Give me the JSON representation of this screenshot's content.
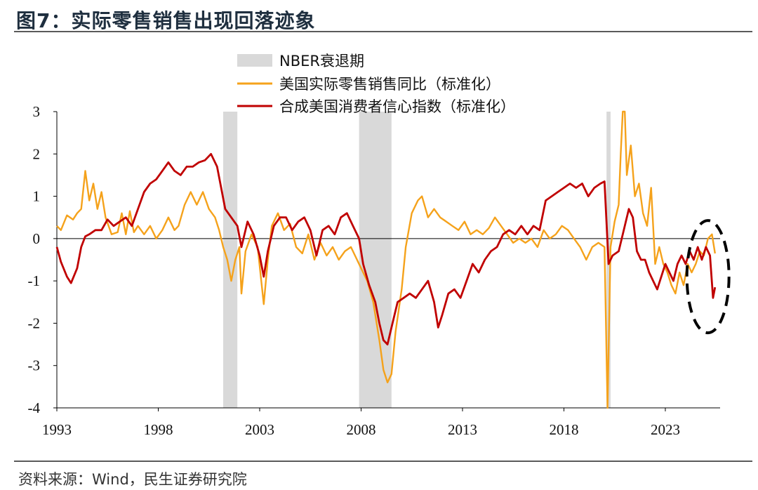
{
  "figure": {
    "title": "图7：实际零售销售出现回落迹象",
    "source": "资料来源：Wind，民生证券研究院"
  },
  "colors": {
    "retail": "#F5A21B",
    "confidence": "#C00000",
    "nber": "#D9D9D9",
    "axis": "#000000"
  },
  "chart_data": {
    "type": "line",
    "x_axis": {
      "ticks": [
        "1993",
        "1998",
        "2003",
        "2008",
        "2013",
        "2018",
        "2023"
      ],
      "range": [
        1993,
        2025.7
      ]
    },
    "y_axis": {
      "ticks": [
        "3",
        "2",
        "1",
        "0",
        "-1",
        "-2",
        "-3",
        "-4"
      ],
      "range": [
        -4,
        3
      ]
    },
    "legend": {
      "position": "top-center",
      "entries": [
        "NBER衰退期",
        "美国实际零售销售同比（标准化）",
        "合成美国消费者信心指数（标准化）"
      ]
    },
    "recessions": [
      {
        "label": "NBER衰退期",
        "start": 2001.2,
        "end": 2001.9
      },
      {
        "label": "NBER衰退期",
        "start": 2007.9,
        "end": 2009.5
      },
      {
        "label": "NBER衰退期",
        "start": 2020.1,
        "end": 2020.3
      }
    ],
    "series": [
      {
        "name": "美国实际零售销售同比（标准化）",
        "color_key": "retail",
        "points": [
          [
            1993.0,
            0.3
          ],
          [
            1993.2,
            0.2
          ],
          [
            1993.5,
            0.55
          ],
          [
            1993.8,
            0.45
          ],
          [
            1994.0,
            0.6
          ],
          [
            1994.2,
            0.7
          ],
          [
            1994.4,
            1.6
          ],
          [
            1994.6,
            0.9
          ],
          [
            1994.8,
            1.3
          ],
          [
            1995.0,
            0.7
          ],
          [
            1995.2,
            1.1
          ],
          [
            1995.4,
            0.5
          ],
          [
            1995.7,
            0.1
          ],
          [
            1996.0,
            0.15
          ],
          [
            1996.2,
            0.6
          ],
          [
            1996.4,
            0.1
          ],
          [
            1996.6,
            0.65
          ],
          [
            1996.8,
            0.15
          ],
          [
            1997.0,
            0.3
          ],
          [
            1997.3,
            0.1
          ],
          [
            1997.6,
            0.3
          ],
          [
            1997.9,
            0.0
          ],
          [
            1998.2,
            0.2
          ],
          [
            1998.5,
            0.5
          ],
          [
            1998.8,
            0.2
          ],
          [
            1999.0,
            0.3
          ],
          [
            1999.3,
            0.8
          ],
          [
            1999.6,
            1.1
          ],
          [
            1999.9,
            0.8
          ],
          [
            2000.2,
            1.1
          ],
          [
            2000.5,
            0.7
          ],
          [
            2000.8,
            0.5
          ],
          [
            2001.0,
            0.2
          ],
          [
            2001.2,
            -0.2
          ],
          [
            2001.4,
            -0.5
          ],
          [
            2001.6,
            -1.0
          ],
          [
            2001.8,
            -0.5
          ],
          [
            2002.0,
            -0.2
          ],
          [
            2002.1,
            -1.3
          ],
          [
            2002.3,
            -0.3
          ],
          [
            2002.6,
            0.1
          ],
          [
            2002.9,
            -0.2
          ],
          [
            2003.2,
            -1.55
          ],
          [
            2003.4,
            -0.5
          ],
          [
            2003.6,
            0.3
          ],
          [
            2003.9,
            0.6
          ],
          [
            2004.2,
            0.2
          ],
          [
            2004.5,
            0.35
          ],
          [
            2004.8,
            -0.2
          ],
          [
            2005.1,
            -0.35
          ],
          [
            2005.4,
            0.1
          ],
          [
            2005.7,
            -0.5
          ],
          [
            2006.0,
            -0.1
          ],
          [
            2006.3,
            -0.4
          ],
          [
            2006.6,
            -0.2
          ],
          [
            2006.9,
            -0.5
          ],
          [
            2007.2,
            -0.3
          ],
          [
            2007.5,
            -0.2
          ],
          [
            2007.8,
            -0.5
          ],
          [
            2008.0,
            -0.7
          ],
          [
            2008.3,
            -1.0
          ],
          [
            2008.6,
            -1.5
          ],
          [
            2008.9,
            -2.4
          ],
          [
            2009.1,
            -3.1
          ],
          [
            2009.3,
            -3.4
          ],
          [
            2009.5,
            -3.2
          ],
          [
            2009.7,
            -2.2
          ],
          [
            2010.0,
            -1.2
          ],
          [
            2010.2,
            -0.2
          ],
          [
            2010.5,
            0.6
          ],
          [
            2010.8,
            0.9
          ],
          [
            2011.0,
            1.0
          ],
          [
            2011.3,
            0.5
          ],
          [
            2011.6,
            0.7
          ],
          [
            2011.9,
            0.5
          ],
          [
            2012.2,
            0.4
          ],
          [
            2012.5,
            0.3
          ],
          [
            2012.8,
            0.2
          ],
          [
            2013.1,
            0.4
          ],
          [
            2013.4,
            0.1
          ],
          [
            2013.7,
            0.2
          ],
          [
            2014.0,
            0.1
          ],
          [
            2014.3,
            0.25
          ],
          [
            2014.6,
            0.5
          ],
          [
            2014.9,
            0.3
          ],
          [
            2015.2,
            0.1
          ],
          [
            2015.5,
            -0.1
          ],
          [
            2015.8,
            0.0
          ],
          [
            2016.1,
            -0.1
          ],
          [
            2016.4,
            0.0
          ],
          [
            2016.7,
            -0.2
          ],
          [
            2017.0,
            0.2
          ],
          [
            2017.3,
            0.0
          ],
          [
            2017.6,
            0.1
          ],
          [
            2017.9,
            0.3
          ],
          [
            2018.2,
            0.2
          ],
          [
            2018.5,
            0.0
          ],
          [
            2018.8,
            -0.2
          ],
          [
            2019.1,
            -0.5
          ],
          [
            2019.4,
            -0.2
          ],
          [
            2019.7,
            -0.1
          ],
          [
            2020.0,
            -0.2
          ],
          [
            2020.15,
            -4.0
          ],
          [
            2020.3,
            -0.2
          ],
          [
            2020.5,
            0.4
          ],
          [
            2020.7,
            0.8
          ],
          [
            2020.8,
            2.0
          ],
          [
            2020.9,
            3.0
          ],
          [
            2021.0,
            3.0
          ],
          [
            2021.1,
            1.5
          ],
          [
            2021.3,
            2.2
          ],
          [
            2021.5,
            1.0
          ],
          [
            2021.7,
            1.3
          ],
          [
            2021.9,
            0.6
          ],
          [
            2022.1,
            0.3
          ],
          [
            2022.3,
            1.2
          ],
          [
            2022.5,
            -0.6
          ],
          [
            2022.7,
            -0.2
          ],
          [
            2022.9,
            -0.6
          ],
          [
            2023.1,
            -0.8
          ],
          [
            2023.3,
            -1.1
          ],
          [
            2023.5,
            -1.3
          ],
          [
            2023.7,
            -0.8
          ],
          [
            2023.9,
            -1.1
          ],
          [
            2024.1,
            -0.6
          ],
          [
            2024.3,
            -0.8
          ],
          [
            2024.5,
            -0.6
          ],
          [
            2024.7,
            -0.3
          ],
          [
            2024.9,
            -0.4
          ],
          [
            2025.1,
            0.0
          ],
          [
            2025.3,
            0.1
          ],
          [
            2025.45,
            -0.35
          ]
        ]
      },
      {
        "name": "合成美国消费者信心指数（标准化）",
        "color_key": "confidence",
        "points": [
          [
            1993.0,
            -0.2
          ],
          [
            1993.2,
            -0.55
          ],
          [
            1993.5,
            -0.9
          ],
          [
            1993.7,
            -1.05
          ],
          [
            1994.0,
            -0.7
          ],
          [
            1994.2,
            -0.2
          ],
          [
            1994.4,
            0.05
          ],
          [
            1994.6,
            0.1
          ],
          [
            1994.9,
            0.2
          ],
          [
            1995.2,
            0.2
          ],
          [
            1995.5,
            0.45
          ],
          [
            1995.8,
            0.3
          ],
          [
            1996.1,
            0.4
          ],
          [
            1996.4,
            0.5
          ],
          [
            1996.7,
            0.3
          ],
          [
            1997.0,
            0.7
          ],
          [
            1997.3,
            1.1
          ],
          [
            1997.6,
            1.3
          ],
          [
            1997.9,
            1.4
          ],
          [
            1998.2,
            1.6
          ],
          [
            1998.5,
            1.8
          ],
          [
            1998.8,
            1.6
          ],
          [
            1999.1,
            1.5
          ],
          [
            1999.4,
            1.7
          ],
          [
            1999.7,
            1.7
          ],
          [
            2000.0,
            1.8
          ],
          [
            2000.3,
            1.85
          ],
          [
            2000.6,
            2.0
          ],
          [
            2000.9,
            1.7
          ],
          [
            2001.1,
            1.2
          ],
          [
            2001.3,
            0.7
          ],
          [
            2001.6,
            0.5
          ],
          [
            2001.9,
            0.3
          ],
          [
            2002.1,
            -0.2
          ],
          [
            2002.4,
            0.4
          ],
          [
            2002.7,
            0.1
          ],
          [
            2003.0,
            -0.4
          ],
          [
            2003.2,
            -0.9
          ],
          [
            2003.4,
            -0.3
          ],
          [
            2003.7,
            0.3
          ],
          [
            2004.0,
            0.5
          ],
          [
            2004.3,
            0.5
          ],
          [
            2004.6,
            0.2
          ],
          [
            2004.9,
            0.4
          ],
          [
            2005.2,
            0.5
          ],
          [
            2005.5,
            0.2
          ],
          [
            2005.8,
            -0.4
          ],
          [
            2006.1,
            0.2
          ],
          [
            2006.4,
            0.3
          ],
          [
            2006.7,
            0.1
          ],
          [
            2007.0,
            0.5
          ],
          [
            2007.3,
            0.6
          ],
          [
            2007.6,
            0.3
          ],
          [
            2007.9,
            0.0
          ],
          [
            2008.1,
            -0.6
          ],
          [
            2008.4,
            -1.1
          ],
          [
            2008.7,
            -1.5
          ],
          [
            2008.9,
            -2.0
          ],
          [
            2009.1,
            -2.4
          ],
          [
            2009.3,
            -2.5
          ],
          [
            2009.5,
            -2.1
          ],
          [
            2009.8,
            -1.5
          ],
          [
            2010.1,
            -1.4
          ],
          [
            2010.4,
            -1.3
          ],
          [
            2010.7,
            -1.4
          ],
          [
            2011.0,
            -1.2
          ],
          [
            2011.3,
            -1.0
          ],
          [
            2011.6,
            -1.5
          ],
          [
            2011.8,
            -2.1
          ],
          [
            2012.0,
            -1.8
          ],
          [
            2012.3,
            -1.3
          ],
          [
            2012.6,
            -1.2
          ],
          [
            2012.9,
            -1.4
          ],
          [
            2013.2,
            -1.0
          ],
          [
            2013.5,
            -0.6
          ],
          [
            2013.8,
            -0.8
          ],
          [
            2014.1,
            -0.5
          ],
          [
            2014.4,
            -0.3
          ],
          [
            2014.7,
            -0.2
          ],
          [
            2015.0,
            0.1
          ],
          [
            2015.3,
            0.2
          ],
          [
            2015.6,
            0.1
          ],
          [
            2015.9,
            0.3
          ],
          [
            2016.2,
            0.1
          ],
          [
            2016.5,
            0.3
          ],
          [
            2016.8,
            0.2
          ],
          [
            2017.1,
            0.9
          ],
          [
            2017.4,
            1.0
          ],
          [
            2017.7,
            1.1
          ],
          [
            2018.0,
            1.2
          ],
          [
            2018.3,
            1.3
          ],
          [
            2018.6,
            1.2
          ],
          [
            2018.9,
            1.3
          ],
          [
            2019.2,
            1.0
          ],
          [
            2019.5,
            1.2
          ],
          [
            2019.8,
            1.3
          ],
          [
            2020.0,
            1.35
          ],
          [
            2020.2,
            -0.6
          ],
          [
            2020.4,
            -0.4
          ],
          [
            2020.7,
            -0.3
          ],
          [
            2021.0,
            0.3
          ],
          [
            2021.2,
            0.7
          ],
          [
            2021.4,
            0.5
          ],
          [
            2021.6,
            -0.3
          ],
          [
            2021.8,
            -0.5
          ],
          [
            2022.0,
            -0.5
          ],
          [
            2022.2,
            -0.8
          ],
          [
            2022.4,
            -1.0
          ],
          [
            2022.6,
            -1.2
          ],
          [
            2022.8,
            -0.9
          ],
          [
            2023.0,
            -0.6
          ],
          [
            2023.2,
            -0.8
          ],
          [
            2023.4,
            -1.0
          ],
          [
            2023.6,
            -0.6
          ],
          [
            2023.8,
            -0.4
          ],
          [
            2024.0,
            -0.6
          ],
          [
            2024.2,
            -0.3
          ],
          [
            2024.4,
            -0.5
          ],
          [
            2024.6,
            -0.2
          ],
          [
            2024.8,
            -0.5
          ],
          [
            2025.0,
            -0.2
          ],
          [
            2025.2,
            -0.4
          ],
          [
            2025.35,
            -1.4
          ],
          [
            2025.45,
            -1.15
          ]
        ]
      }
    ],
    "annotation": {
      "shape": "dashed-ellipse",
      "center": [
        2025.1,
        -0.9
      ]
    }
  }
}
